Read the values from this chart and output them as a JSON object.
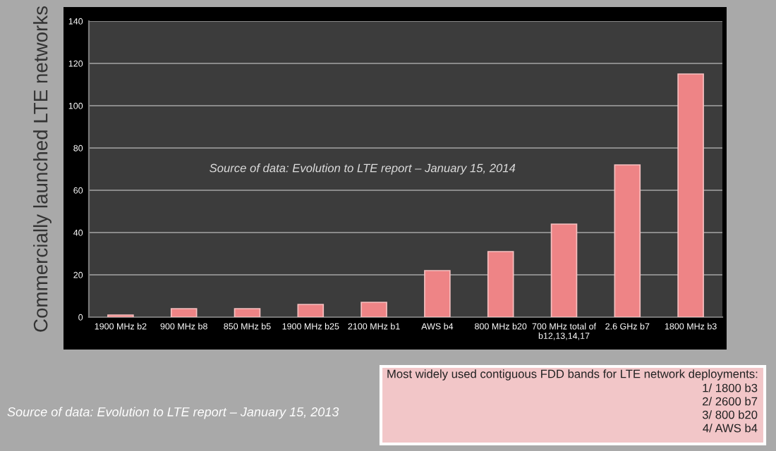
{
  "chart_data": {
    "type": "bar",
    "ylabel": "Commercially launched LTE networks",
    "categories": [
      "1900 MHz b2",
      "900 MHz b8",
      "850 MHz b5",
      "1900 MHz b25",
      "2100 MHz b1",
      "AWS b4",
      "800 MHz b20",
      "700 MHz total of\nb12,13,14,17",
      "2.6 GHz b7",
      "1800 MHz b3"
    ],
    "values": [
      1,
      4,
      4,
      6,
      7,
      22,
      31,
      44,
      72,
      115
    ],
    "color": "#ee8486",
    "ylim": [
      0,
      140
    ],
    "yticks": [
      0,
      20,
      40,
      60,
      80,
      100,
      120,
      140
    ],
    "grid": "y",
    "annotations": [
      "Source of data: Evolution to LTE report – January 15, 2014",
      "Source of data: Evolution to LTE report – January 15, 2013",
      "Most widely used contiguous FDD bands for LTE network deployments:\n1/ 1800 b3\n2/ 2600 b7\n3/ 800 b20\n4/ AWS b4"
    ]
  }
}
